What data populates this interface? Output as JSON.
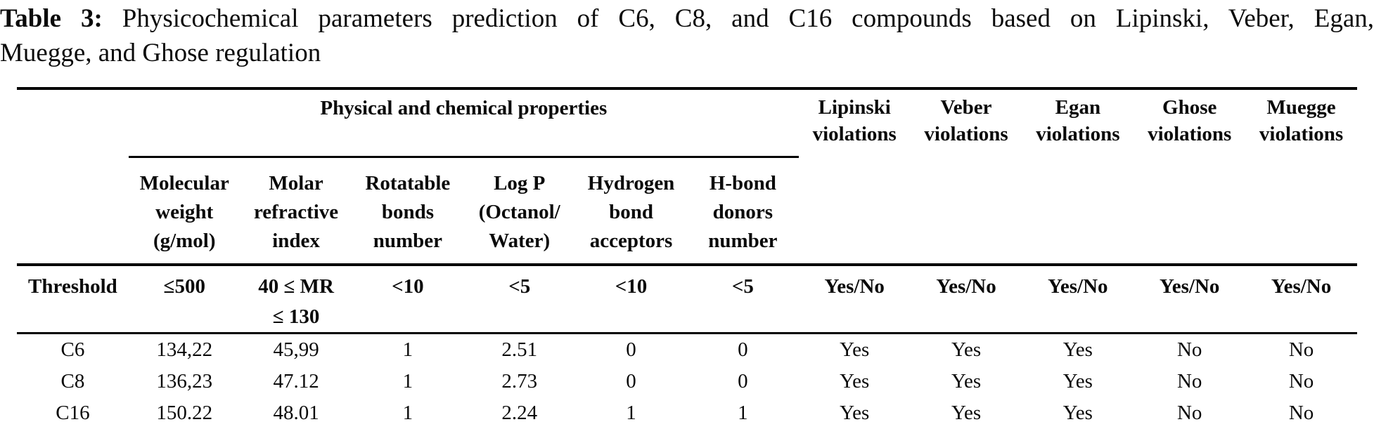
{
  "title": {
    "label": "Table 3:",
    "line1": "Physicochemical parameters prediction of C6, C8, and C16 compounds based on Lipinski, Veber, Egan,",
    "line2": "Muegge, and Ghose regulation"
  },
  "table": {
    "group_header": "Physical and chemical properties",
    "violation_headers": [
      "Lipinski\nviolations",
      "Veber\nviolations",
      "Egan\nviolations",
      "Ghose\nviolations",
      "Muegge\nviolations"
    ],
    "property_headers": [
      "Molecular\nweight\n(g/mol)",
      "Molar\nrefractive\nindex",
      "Rotatable\nbonds\nnumber",
      "Log P\n(Octanol/\nWater)",
      "Hydrogen\nbond\nacceptors",
      "H-bond\ndonors\nnumber"
    ],
    "threshold": {
      "label": "Threshold",
      "values": [
        "≤500",
        "40 ≤ MR\n≤ 130",
        "<10",
        "<5",
        "<10",
        "<5",
        "Yes/No",
        "Yes/No",
        "Yes/No",
        "Yes/No",
        "Yes/No"
      ]
    },
    "rows": [
      {
        "compound": "C6",
        "values": [
          "134,22",
          "45,99",
          "1",
          "2.51",
          "0",
          "0",
          "Yes",
          "Yes",
          "Yes",
          "No",
          "No"
        ]
      },
      {
        "compound": "C8",
        "values": [
          "136,23",
          "47.12",
          "1",
          "2.73",
          "0",
          "0",
          "Yes",
          "Yes",
          "Yes",
          "No",
          "No"
        ]
      },
      {
        "compound": "C16",
        "values": [
          "150.22",
          "48.01",
          "1",
          "2.24",
          "1",
          "1",
          "Yes",
          "Yes",
          "Yes",
          "No",
          "No"
        ]
      }
    ]
  }
}
